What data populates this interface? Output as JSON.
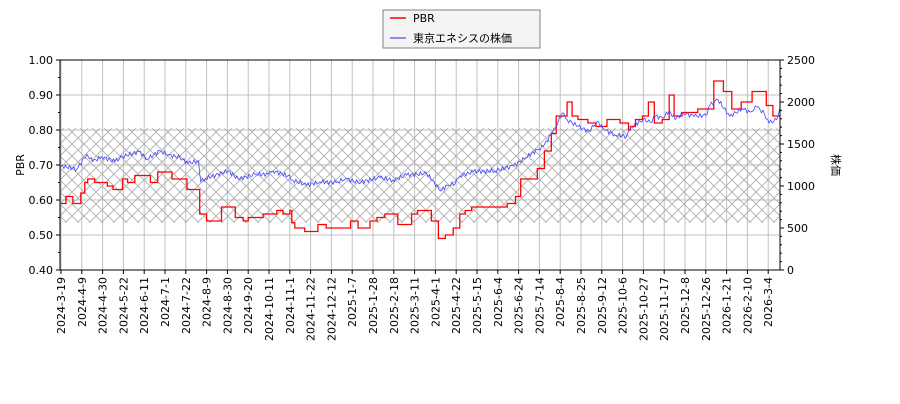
{
  "chart_data": {
    "type": "line",
    "legend": {
      "placement": "top-center",
      "entries": [
        "PBR",
        "東京エネシスの株価"
      ]
    },
    "left_axis": {
      "label": "PBR",
      "ylim": [
        0.4,
        1.0
      ],
      "ticks": [
        "0.40",
        "0.50",
        "0.60",
        "0.70",
        "0.80",
        "0.90",
        "1.00"
      ]
    },
    "right_axis": {
      "label": "株価",
      "ylim": [
        0,
        2500
      ],
      "ticks": [
        "0",
        "500",
        "1000",
        "1500",
        "2000",
        "2500"
      ]
    },
    "x_ticks": [
      "2024-3-19",
      "2024-4-9",
      "2024-4-30",
      "2024-5-22",
      "2024-6-11",
      "2024-7-1",
      "2024-7-22",
      "2024-8-9",
      "2024-8-30",
      "2024-9-20",
      "2024-10-11",
      "2024-11-1",
      "2024-11-22",
      "2024-12-12",
      "2025-1-7",
      "2025-1-28",
      "2025-2-18",
      "2025-3-11",
      "2025-4-1",
      "2025-4-22",
      "2025-5-15",
      "2025-6-4",
      "2025-6-24",
      "2025-7-14",
      "2025-8-4",
      "2025-8-25",
      "2025-9-12",
      "2025-10-6",
      "2025-10-27",
      "2025-11-17",
      "2025-12-8",
      "2025-12-26",
      "2026-1-21",
      "2026-2-10",
      "2026-3-4"
    ],
    "x_end": "2026-3-16",
    "grid": true,
    "band": {
      "axis": "left",
      "range": [
        0.535,
        0.805
      ],
      "pattern": "crosshatch"
    },
    "colors": {
      "PBR": "#ff0000",
      "price": "#4444ff",
      "grid": "#c0c0c0",
      "hatch": "#aaaaaa"
    },
    "series": [
      {
        "name": "PBR",
        "axis": "left",
        "step": true,
        "points": [
          [
            "2024-3-19",
            0.59
          ],
          [
            "2024-3-24",
            0.61
          ],
          [
            "2024-3-31",
            0.59
          ],
          [
            "2024-4-8",
            0.62
          ],
          [
            "2024-4-12",
            0.65
          ],
          [
            "2024-4-15",
            0.66
          ],
          [
            "2024-4-22",
            0.65
          ],
          [
            "2024-5-5",
            0.64
          ],
          [
            "2024-5-11",
            0.63
          ],
          [
            "2024-5-21",
            0.66
          ],
          [
            "2024-5-26",
            0.65
          ],
          [
            "2024-6-2",
            0.67
          ],
          [
            "2024-6-17",
            0.65
          ],
          [
            "2024-6-24",
            0.68
          ],
          [
            "2024-7-8",
            0.66
          ],
          [
            "2024-7-23",
            0.63
          ],
          [
            "2024-8-3",
            0.56
          ],
          [
            "2024-8-9",
            0.54
          ],
          [
            "2024-8-24",
            0.58
          ],
          [
            "2024-9-7",
            0.55
          ],
          [
            "2024-9-15",
            0.54
          ],
          [
            "2024-9-20",
            0.55
          ],
          [
            "2024-10-5",
            0.56
          ],
          [
            "2024-10-19",
            0.57
          ],
          [
            "2024-10-25",
            0.56
          ],
          [
            "2024-11-1",
            0.57
          ],
          [
            "2024-11-3",
            0.535
          ],
          [
            "2024-11-6",
            0.52
          ],
          [
            "2024-11-16",
            0.51
          ],
          [
            "2024-11-29",
            0.53
          ],
          [
            "2024-12-7",
            0.52
          ],
          [
            "2025-1-5",
            0.54
          ],
          [
            "2025-1-13",
            0.52
          ],
          [
            "2025-1-25",
            0.54
          ],
          [
            "2025-2-1",
            0.55
          ],
          [
            "2025-2-9",
            0.56
          ],
          [
            "2025-2-22",
            0.53
          ],
          [
            "2025-3-8",
            0.56
          ],
          [
            "2025-3-14",
            0.57
          ],
          [
            "2025-3-28",
            0.54
          ],
          [
            "2025-4-4",
            0.49
          ],
          [
            "2025-4-11",
            0.5
          ],
          [
            "2025-4-19",
            0.52
          ],
          [
            "2025-4-26",
            0.56
          ],
          [
            "2025-5-2",
            0.57
          ],
          [
            "2025-5-9",
            0.58
          ],
          [
            "2025-6-13",
            0.59
          ],
          [
            "2025-6-21",
            0.61
          ],
          [
            "2025-6-26",
            0.66
          ],
          [
            "2025-7-12",
            0.69
          ],
          [
            "2025-7-19",
            0.74
          ],
          [
            "2025-7-26",
            0.79
          ],
          [
            "2025-7-31",
            0.84
          ],
          [
            "2025-8-11",
            0.88
          ],
          [
            "2025-8-16",
            0.84
          ],
          [
            "2025-8-22",
            0.83
          ],
          [
            "2025-8-31",
            0.82
          ],
          [
            "2025-9-7",
            0.81
          ],
          [
            "2025-9-18",
            0.83
          ],
          [
            "2025-10-3",
            0.82
          ],
          [
            "2025-10-12",
            0.8
          ],
          [
            "2025-10-14",
            0.81
          ],
          [
            "2025-10-19",
            0.83
          ],
          [
            "2025-10-26",
            0.84
          ],
          [
            "2025-11-1",
            0.88
          ],
          [
            "2025-11-7",
            0.82
          ],
          [
            "2025-11-15",
            0.83
          ],
          [
            "2025-11-22",
            0.9
          ],
          [
            "2025-11-27",
            0.84
          ],
          [
            "2025-12-5",
            0.85
          ],
          [
            "2025-12-19",
            0.86
          ],
          [
            "2026-1-5",
            0.94
          ],
          [
            "2026-1-17",
            0.91
          ],
          [
            "2026-1-26",
            0.86
          ],
          [
            "2026-2-4",
            0.88
          ],
          [
            "2026-2-15",
            0.91
          ],
          [
            "2026-3-2",
            0.87
          ],
          [
            "2026-3-9",
            0.84
          ],
          [
            "2026-3-16",
            0.84
          ]
        ]
      },
      {
        "name": "東京エネシスの株価",
        "axis": "right",
        "step": false,
        "points": [
          [
            "2024-3-19",
            1240
          ],
          [
            "2024-4-4",
            1200
          ],
          [
            "2024-4-14",
            1380
          ],
          [
            "2024-4-20",
            1290
          ],
          [
            "2024-4-29",
            1350
          ],
          [
            "2024-5-13",
            1290
          ],
          [
            "2024-5-21",
            1350
          ],
          [
            "2024-6-6",
            1410
          ],
          [
            "2024-6-14",
            1320
          ],
          [
            "2024-6-26",
            1420
          ],
          [
            "2024-7-4",
            1370
          ],
          [
            "2024-7-16",
            1340
          ],
          [
            "2024-7-24",
            1270
          ],
          [
            "2024-8-2",
            1300
          ],
          [
            "2024-8-4",
            1050
          ],
          [
            "2024-8-8",
            1090
          ],
          [
            "2024-8-31",
            1180
          ],
          [
            "2024-9-10",
            1080
          ],
          [
            "2024-9-27",
            1140
          ],
          [
            "2024-10-10",
            1140
          ],
          [
            "2024-10-15",
            1180
          ],
          [
            "2024-10-30",
            1120
          ],
          [
            "2024-11-4",
            1070
          ],
          [
            "2024-11-18",
            1010
          ],
          [
            "2024-12-1",
            1050
          ],
          [
            "2024-12-18",
            1040
          ],
          [
            "2024-12-30",
            1090
          ],
          [
            "2025-1-13",
            1040
          ],
          [
            "2025-2-4",
            1100
          ],
          [
            "2025-2-17",
            1070
          ],
          [
            "2025-3-3",
            1130
          ],
          [
            "2025-3-23",
            1150
          ],
          [
            "2025-3-29",
            1070
          ],
          [
            "2025-4-6",
            940
          ],
          [
            "2025-4-13",
            1010
          ],
          [
            "2025-4-21",
            1030
          ],
          [
            "2025-4-26",
            1120
          ],
          [
            "2025-5-11",
            1170
          ],
          [
            "2025-6-1",
            1180
          ],
          [
            "2025-6-19",
            1240
          ],
          [
            "2025-7-1",
            1340
          ],
          [
            "2025-7-12",
            1430
          ],
          [
            "2025-7-18",
            1470
          ],
          [
            "2025-7-30",
            1690
          ],
          [
            "2025-8-6",
            1870
          ],
          [
            "2025-8-11",
            1790
          ],
          [
            "2025-8-22",
            1710
          ],
          [
            "2025-9-1",
            1650
          ],
          [
            "2025-9-8",
            1770
          ],
          [
            "2025-9-15",
            1670
          ],
          [
            "2025-9-27",
            1610
          ],
          [
            "2025-10-10",
            1590
          ],
          [
            "2025-10-15",
            1710
          ],
          [
            "2025-10-27",
            1790
          ],
          [
            "2025-11-3",
            1760
          ],
          [
            "2025-11-8",
            1830
          ],
          [
            "2025-11-16",
            1810
          ],
          [
            "2025-11-22",
            1900
          ],
          [
            "2025-11-28",
            1790
          ],
          [
            "2025-12-6",
            1870
          ],
          [
            "2025-12-16",
            1830
          ],
          [
            "2025-12-26",
            1840
          ],
          [
            "2025-12-31",
            1960
          ],
          [
            "2026-1-10",
            2030
          ],
          [
            "2026-1-24",
            1830
          ],
          [
            "2026-2-5",
            1920
          ],
          [
            "2026-2-13",
            1880
          ],
          [
            "2026-2-20",
            1940
          ],
          [
            "2026-2-28",
            1860
          ],
          [
            "2026-3-5",
            1750
          ],
          [
            "2026-3-13",
            1790
          ],
          [
            "2026-3-16",
            1920
          ]
        ]
      }
    ]
  }
}
